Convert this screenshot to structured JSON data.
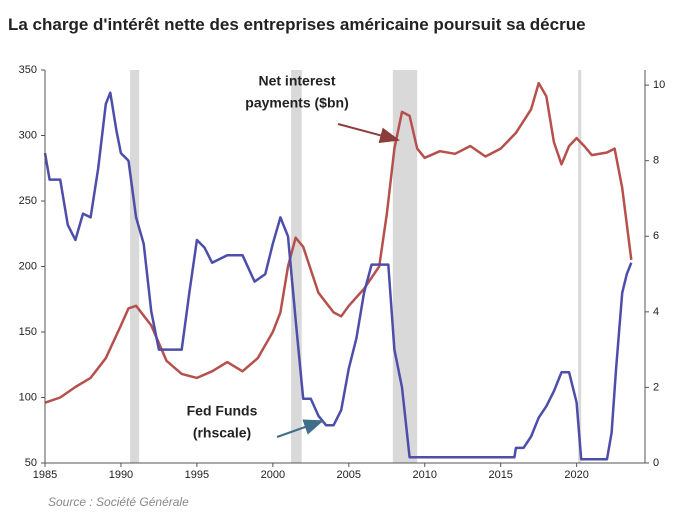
{
  "chart_data": {
    "type": "line",
    "title": "La charge d'intérêt nette des entreprises américaine poursuit sa décrue",
    "source": "Source : Société Générale",
    "xlim": [
      1985,
      2024.5
    ],
    "xticks": [
      1985,
      1990,
      1995,
      2000,
      2005,
      2010,
      2015,
      2020
    ],
    "ylim": [
      50,
      350
    ],
    "yticks": [
      50,
      100,
      150,
      200,
      250,
      300,
      350
    ],
    "y2lim": [
      0,
      10.4
    ],
    "y2ticks": [
      0,
      2,
      4,
      6,
      8,
      10
    ],
    "grid": false,
    "shaded_periods": [
      [
        1990.6,
        1991.2
      ],
      [
        2001.2,
        2001.9
      ],
      [
        2007.9,
        2009.5
      ],
      [
        2020.1,
        2020.3
      ]
    ],
    "shade_color": "#d9d9d9",
    "series": [
      {
        "color": "#b5504d",
        "x": [
          1985,
          1986,
          1987,
          1988,
          1989,
          1990,
          1990.5,
          1991,
          1992,
          1993,
          1994,
          1995,
          1996,
          1997,
          1998,
          1999,
          2000,
          2000.5,
          2001,
          2001.5,
          2002,
          2003,
          2004,
          2004.5,
          2005,
          2006,
          2007,
          2007.5,
          2008,
          2008.5,
          2009,
          2009.5,
          2010,
          2011,
          2012,
          2013,
          2014,
          2015,
          2016,
          2017,
          2017.5,
          2018,
          2018.5,
          2019,
          2019.5,
          2020,
          2020.5,
          2021,
          2022,
          2022.5,
          2023,
          2023.6
        ],
        "values": [
          96,
          100,
          108,
          115,
          130,
          155,
          168,
          170,
          155,
          128,
          118,
          115,
          120,
          127,
          120,
          130,
          150,
          165,
          200,
          222,
          215,
          180,
          165,
          162,
          170,
          183,
          200,
          240,
          290,
          318,
          315,
          290,
          283,
          288,
          286,
          292,
          284,
          290,
          302,
          320,
          340,
          330,
          295,
          278,
          292,
          298,
          292,
          285,
          287,
          290,
          260,
          205
        ]
      },
      {
        "color": "#4d4daa",
        "axis": "y2",
        "x": [
          1985,
          1985.3,
          1986,
          1986.5,
          1987,
          1987.5,
          1988,
          1988.5,
          1989,
          1989.3,
          1989.7,
          1990,
          1990.5,
          1991,
          1991.5,
          1992,
          1992.5,
          1993,
          1994,
          1994.5,
          1995,
          1995.5,
          1996,
          1997,
          1998,
          1998.8,
          1999.5,
          2000,
          2000.5,
          2001,
          2001.5,
          2002,
          2002.5,
          2003,
          2003.5,
          2004,
          2004.5,
          2005,
          2005.5,
          2006,
          2006.5,
          2007,
          2007.6,
          2008,
          2008.5,
          2009,
          2010,
          2011,
          2012,
          2013,
          2014,
          2015,
          2015.9,
          2016,
          2016.5,
          2017,
          2017.5,
          2018,
          2018.5,
          2019,
          2019.5,
          2020,
          2020.3,
          2021,
          2022,
          2022.3,
          2022.6,
          2023,
          2023.3,
          2023.6
        ],
        "values": [
          8.2,
          7.5,
          7.5,
          6.3,
          5.9,
          6.6,
          6.5,
          7.8,
          9.5,
          9.8,
          8.8,
          8.2,
          8.0,
          6.5,
          5.8,
          4.0,
          3.0,
          3.0,
          3.0,
          4.5,
          5.9,
          5.7,
          5.3,
          5.5,
          5.5,
          4.8,
          5.0,
          5.8,
          6.5,
          6.0,
          3.8,
          1.7,
          1.7,
          1.25,
          1.0,
          1.0,
          1.4,
          2.5,
          3.3,
          4.5,
          5.25,
          5.25,
          5.25,
          3.0,
          2.0,
          0.15,
          0.15,
          0.15,
          0.15,
          0.15,
          0.15,
          0.15,
          0.15,
          0.4,
          0.4,
          0.7,
          1.2,
          1.5,
          1.9,
          2.4,
          2.4,
          1.6,
          0.1,
          0.1,
          0.1,
          0.8,
          2.5,
          4.5,
          5.0,
          5.3
        ]
      }
    ],
    "annotations": [
      {
        "lines": [
          "Net interest",
          "payments ($bn)"
        ]
      },
      {
        "lines": [
          "Fed Funds",
          "(rhscale)"
        ]
      }
    ]
  }
}
